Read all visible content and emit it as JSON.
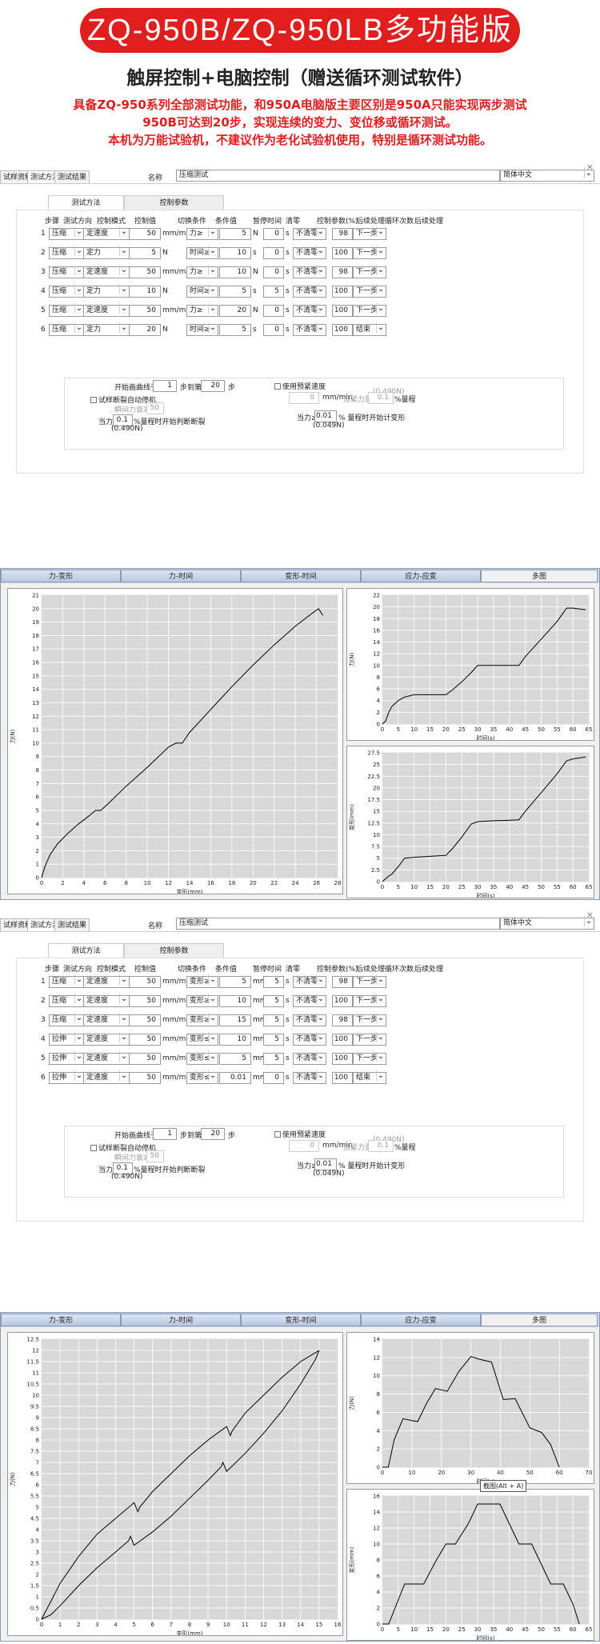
{
  "header": {
    "title": "ZQ-950B/ZQ-950LB多功能版",
    "subtitle": "触屏控制+电脑控制（赠送循环测试软件）",
    "desc": [
      "具备ZQ-950系列全部测试功能，和950A电脑版主要区别是950A只能实现两步测试",
      "950B可达到20步，实现连续的变力、变位移或循环测试。",
      "本机为万能试验机，不建议作为老化试验机使用，特别是循环测试功能。"
    ]
  },
  "colors": {
    "accent": "#e01e1e",
    "chart_tab": "#c9d5e5"
  },
  "window1": {
    "tabs": [
      "试样资料",
      "测试方法",
      "测试结果"
    ],
    "active_tab": "测试方法",
    "name_label": "名称",
    "name_value": "压缩测试",
    "language": "简体中文",
    "close": "×",
    "sub_tabs": [
      "测试方法",
      "控制参数"
    ],
    "columns": [
      "步骤",
      "测试方向",
      "控制模式",
      "控制值",
      "切换条件",
      "条件值",
      "暂停时间",
      "清零",
      "控制参数(%)",
      "后续处理",
      "循环次数",
      "后续处理"
    ],
    "rows": [
      {
        "step": "1",
        "dir": "压缩",
        "mode": "定速度",
        "val": "50",
        "unit": "mm/min",
        "cond": "力≥",
        "cval": "5",
        "cunit": "N",
        "pause": "0",
        "punit": "s",
        "clear": "不清零",
        "param": "98",
        "next": "下一步"
      },
      {
        "step": "2",
        "dir": "压缩",
        "mode": "定力",
        "val": "5",
        "unit": "N",
        "cond": "时间≥",
        "cval": "10",
        "cunit": "s",
        "pause": "0",
        "punit": "s",
        "clear": "不清零",
        "param": "100",
        "next": "下一步"
      },
      {
        "step": "3",
        "dir": "压缩",
        "mode": "定速度",
        "val": "50",
        "unit": "mm/min",
        "cond": "力≥",
        "cval": "10",
        "cunit": "N",
        "pause": "0",
        "punit": "s",
        "clear": "不清零",
        "param": "98",
        "next": "下一步"
      },
      {
        "step": "4",
        "dir": "压缩",
        "mode": "定力",
        "val": "10",
        "unit": "N",
        "cond": "时间≥",
        "cval": "5",
        "cunit": "s",
        "pause": "5",
        "punit": "s",
        "clear": "不清零",
        "param": "100",
        "next": "下一步"
      },
      {
        "step": "5",
        "dir": "压缩",
        "mode": "定速度",
        "val": "50",
        "unit": "mm/min",
        "cond": "力≥",
        "cval": "20",
        "cunit": "N",
        "pause": "0",
        "punit": "s",
        "clear": "不清零",
        "param": "100",
        "next": "下一步"
      },
      {
        "step": "6",
        "dir": "压缩",
        "mode": "定力",
        "val": "20",
        "unit": "N",
        "cond": "时间≥",
        "cval": "5",
        "cunit": "s",
        "pause": "0",
        "punit": "s",
        "clear": "不清零",
        "param": "100",
        "next": "结束"
      }
    ]
  },
  "window2": {
    "tabs": [
      "试样资料",
      "测试方法",
      "测试结果"
    ],
    "active_tab": "测试方法",
    "name_label": "名称",
    "name_value": "压缩测试",
    "language": "简体中文",
    "close": "×",
    "sub_tabs": [
      "测试方法",
      "控制参数"
    ],
    "columns": [
      "步骤",
      "测试方向",
      "控制模式",
      "控制值",
      "切换条件",
      "条件值",
      "暂停时间",
      "清零",
      "控制参数(%)",
      "后续处理",
      "循环次数",
      "后续处理"
    ],
    "rows": [
      {
        "step": "1",
        "dir": "压缩",
        "mode": "定速度",
        "val": "50",
        "unit": "mm/min",
        "cond": "变形≥",
        "cval": "5",
        "cunit": "mm",
        "pause": "5",
        "punit": "s",
        "clear": "不清零",
        "param": "98",
        "next": "下一步"
      },
      {
        "step": "2",
        "dir": "压缩",
        "mode": "定速度",
        "val": "50",
        "unit": "mm/min",
        "cond": "变形≥",
        "cval": "10",
        "cunit": "mm",
        "pause": "5",
        "punit": "s",
        "clear": "不清零",
        "param": "100",
        "next": "下一步"
      },
      {
        "step": "3",
        "dir": "压缩",
        "mode": "定速度",
        "val": "50",
        "unit": "mm/min",
        "cond": "变形≥",
        "cval": "15",
        "cunit": "mm",
        "pause": "5",
        "punit": "s",
        "clear": "不清零",
        "param": "98",
        "next": "下一步"
      },
      {
        "step": "4",
        "dir": "拉伸",
        "mode": "定速度",
        "val": "50",
        "unit": "mm/min",
        "cond": "变形≤",
        "cval": "10",
        "cunit": "mm",
        "pause": "5",
        "punit": "s",
        "clear": "不清零",
        "param": "100",
        "next": "下一步"
      },
      {
        "step": "5",
        "dir": "拉伸",
        "mode": "定速度",
        "val": "50",
        "unit": "mm/min",
        "cond": "变形≤",
        "cval": "5",
        "cunit": "mm",
        "pause": "5",
        "punit": "s",
        "clear": "不清零",
        "param": "100",
        "next": "下一步"
      },
      {
        "step": "6",
        "dir": "拉伸",
        "mode": "定速度",
        "val": "50",
        "unit": "mm/min",
        "cond": "变形≤",
        "cval": "0.01",
        "cunit": "mm",
        "pause": "0",
        "punit": "s",
        "clear": "不清零",
        "param": "100",
        "next": "结束"
      }
    ]
  },
  "options": {
    "start_curve_label": "开始画曲线于第",
    "start_step": "1",
    "step_to": "步到第",
    "end_step": "20",
    "step_unit": "步",
    "use_preload": "使用预紧速度",
    "preload_note": "(0.490N)",
    "preload_speed": "0",
    "preload_unit": "mm/min",
    "preload_force_label": "预紧力量",
    "preload_force": "0.1",
    "preload_force_unit": "%量程",
    "auto_stop": "试样断裂自动停机",
    "instant_drop_label": "瞬间力衰减≥",
    "instant_drop": "50",
    "break_force_label": "当力≥",
    "break_force": "0.1",
    "break_force_unit": "%量程时开始判断断裂",
    "break_force_note": "(0.490N)",
    "deform_force_label": "当力≥",
    "deform_force": "0.01",
    "deform_force_unit": "% 量程时开始计变形",
    "deform_force_note": "(0.049N)"
  },
  "chart_tabs": [
    "力-变形",
    "力-时间",
    "变形-时间",
    "应力-应变",
    "多图"
  ],
  "chart_active_tab": "多图",
  "tooltip": "截图(Alt + A)",
  "chart_data": [
    {
      "type": "line",
      "title": "",
      "xlabel": "变形(mm)",
      "ylabel": "力(N)",
      "xlim": [
        0,
        28
      ],
      "ylim": [
        0,
        21
      ],
      "grid": true,
      "xticks": [
        0,
        2,
        4,
        6,
        8,
        10,
        12,
        14,
        16,
        18,
        20,
        22,
        24,
        26,
        28
      ],
      "yticks": [
        0,
        1,
        2,
        3,
        4,
        5,
        6,
        7,
        8,
        9,
        10,
        11,
        12,
        13,
        14,
        15,
        16,
        17,
        18,
        19,
        20,
        21
      ],
      "series": [
        {
          "x": [
            0,
            0.3,
            0.8,
            1.5,
            2.5,
            3.5,
            4.5,
            5.1,
            5.6,
            6.3,
            8,
            10,
            12,
            12.7,
            13.3,
            14,
            16,
            18,
            20,
            22,
            24,
            25.5,
            26.2,
            26.6
          ],
          "y": [
            0,
            0.8,
            1.7,
            2.5,
            3.3,
            4,
            4.6,
            5,
            5,
            5.5,
            6.8,
            8.2,
            9.7,
            10,
            10,
            10.8,
            12.5,
            14.2,
            15.8,
            17.3,
            18.7,
            19.6,
            20,
            19.5
          ]
        }
      ]
    },
    {
      "type": "line",
      "title": "",
      "xlabel": "时间(s)",
      "ylabel": "力(N)",
      "xlim": [
        0,
        65
      ],
      "ylim": [
        0,
        22
      ],
      "grid": true,
      "xticks": [
        0,
        5,
        10,
        15,
        20,
        25,
        30,
        35,
        40,
        45,
        50,
        55,
        60,
        65
      ],
      "yticks": [
        0,
        2,
        4,
        6,
        8,
        10,
        12,
        14,
        16,
        18,
        20,
        22
      ],
      "series": [
        {
          "x": [
            0,
            1,
            2,
            3,
            5,
            7,
            10,
            15,
            20,
            22,
            25,
            28,
            30,
            35,
            40,
            43,
            45,
            50,
            55,
            58,
            60,
            64
          ],
          "y": [
            0,
            0.5,
            2,
            3,
            4,
            4.6,
            5,
            5,
            5,
            5.8,
            7.2,
            8.8,
            10,
            10,
            10,
            10,
            11.5,
            14.5,
            17.5,
            19.8,
            19.8,
            19.5
          ]
        }
      ]
    },
    {
      "type": "line",
      "title": "",
      "xlabel": "时间(s)",
      "ylabel": "变形(mm)",
      "xlim": [
        0,
        65
      ],
      "ylim": [
        0,
        27.5
      ],
      "grid": true,
      "xticks": [
        0,
        5,
        10,
        15,
        20,
        25,
        30,
        35,
        40,
        45,
        50,
        55,
        60,
        65
      ],
      "yticks": [
        0,
        2.5,
        5,
        7.5,
        10,
        12.5,
        15,
        17.5,
        20,
        22.5,
        25,
        27.5
      ],
      "series": [
        {
          "x": [
            0,
            1,
            2,
            3,
            5,
            7,
            10,
            15,
            20,
            22,
            25,
            28,
            30,
            35,
            40,
            43,
            45,
            50,
            55,
            58,
            60,
            64
          ],
          "y": [
            0,
            0.6,
            1.2,
            1.6,
            3.2,
            5,
            5.2,
            5.4,
            5.6,
            7,
            9.5,
            12.3,
            12.8,
            13,
            13.1,
            13.2,
            15,
            19,
            23,
            25.8,
            26.2,
            26.6
          ]
        }
      ]
    },
    {
      "type": "line",
      "title": "",
      "xlabel": "变形(mm)",
      "ylabel": "力(N)",
      "xlim": [
        0,
        16
      ],
      "ylim": [
        0,
        12.5
      ],
      "grid": true,
      "xticks": [
        0,
        1,
        2,
        3,
        4,
        5,
        6,
        7,
        8,
        9,
        10,
        11,
        12,
        13,
        14,
        15,
        16
      ],
      "yticks": [
        0,
        0.5,
        1,
        1.5,
        2,
        2.5,
        3,
        3.5,
        4,
        4.5,
        5,
        5.5,
        6,
        6.5,
        7,
        7.5,
        8,
        8.5,
        9,
        9.5,
        10,
        10.5,
        11,
        11.5,
        12,
        12.5
      ],
      "series": [
        {
          "x": [
            0,
            0.5,
            1,
            2,
            3,
            4,
            5,
            5.2,
            5.3,
            6,
            7,
            8,
            9,
            10,
            10.2,
            10.3,
            11,
            12,
            13,
            14,
            14.8,
            15
          ],
          "y": [
            0,
            0.8,
            1.6,
            2.8,
            3.8,
            4.5,
            5.2,
            4.8,
            5,
            5.7,
            6.5,
            7.3,
            8,
            8.6,
            8.2,
            8.4,
            9.2,
            10,
            10.8,
            11.5,
            11.9,
            12
          ]
        },
        {
          "x": [
            15,
            14.8,
            14,
            13,
            12,
            11,
            10,
            9.8,
            9.7,
            9,
            8,
            7,
            6,
            5,
            4.8,
            4.7,
            4,
            3,
            2,
            1,
            0.5,
            0
          ],
          "y": [
            12,
            11.6,
            10.5,
            9.3,
            8.3,
            7.4,
            6.6,
            7,
            6.8,
            6.2,
            5.4,
            4.6,
            3.9,
            3.3,
            3.7,
            3.5,
            3,
            2.3,
            1.5,
            0.6,
            0.2,
            0
          ]
        }
      ]
    },
    {
      "type": "line",
      "title": "",
      "xlabel": "时间(s)",
      "ylabel": "力(N)",
      "xlim": [
        0,
        70
      ],
      "ylim": [
        0,
        14
      ],
      "grid": true,
      "xticks": [
        0,
        10,
        20,
        30,
        40,
        50,
        60,
        70
      ],
      "yticks": [
        0,
        2,
        4,
        6,
        8,
        10,
        12,
        14
      ],
      "series": [
        {
          "x": [
            0,
            2,
            4,
            7,
            10,
            12,
            15,
            18,
            22,
            26,
            30,
            33,
            37,
            41,
            45,
            50,
            54,
            57,
            60
          ],
          "y": [
            0,
            0,
            3,
            5.3,
            5.1,
            5,
            7,
            8.6,
            8.3,
            10.5,
            12.1,
            11.8,
            11.5,
            7.4,
            7.5,
            4.3,
            3.8,
            2.5,
            0
          ]
        }
      ]
    },
    {
      "type": "line",
      "title": "",
      "xlabel": "时间(s)",
      "ylabel": "变形(mm)",
      "xlim": [
        0,
        65
      ],
      "ylim": [
        0,
        16
      ],
      "grid": true,
      "xticks": [
        0,
        5,
        10,
        15,
        20,
        25,
        30,
        35,
        40,
        45,
        50,
        55,
        60,
        65
      ],
      "yticks": [
        0,
        2,
        4,
        6,
        8,
        10,
        12,
        14,
        16
      ],
      "series": [
        {
          "x": [
            0,
            2,
            5,
            7,
            10,
            13,
            17,
            20,
            23,
            27,
            30,
            33,
            37,
            40,
            43,
            47,
            50,
            53,
            57,
            60,
            62
          ],
          "y": [
            0,
            0,
            3,
            5,
            5,
            5,
            8,
            10,
            10,
            12.5,
            15,
            15,
            15,
            12.5,
            10,
            10,
            7.5,
            5,
            5,
            2.5,
            0
          ]
        }
      ]
    }
  ]
}
